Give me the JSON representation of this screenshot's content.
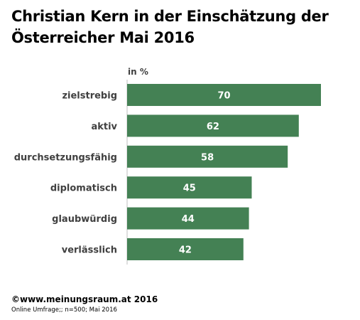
{
  "title": "Christian Kern in der Einschätzung der Österreicher Mai 2016",
  "unit_label": "in %",
  "footer": {
    "copyright": "©www.meinungsraum.at  2016",
    "source": "Online Umfrage;; n=500; Mai 2016"
  },
  "colors": {
    "bar": "#448154",
    "bar_label": "#ffffff",
    "category_label": "#404040"
  },
  "chart_data": {
    "type": "bar",
    "orientation": "horizontal",
    "categories": [
      "zielstrebig",
      "aktiv",
      "durchsetzungsfähig",
      "diplomatisch",
      "glaubwürdig",
      "verlässlich"
    ],
    "values": [
      70,
      62,
      58,
      45,
      44,
      42
    ],
    "title": "Christian Kern in der Einschätzung der Österreicher Mai 2016",
    "xlabel": "",
    "ylabel": "",
    "unit": "in %",
    "xlim": [
      0,
      80
    ],
    "grid": false,
    "legend": "none",
    "data_labels": true
  }
}
